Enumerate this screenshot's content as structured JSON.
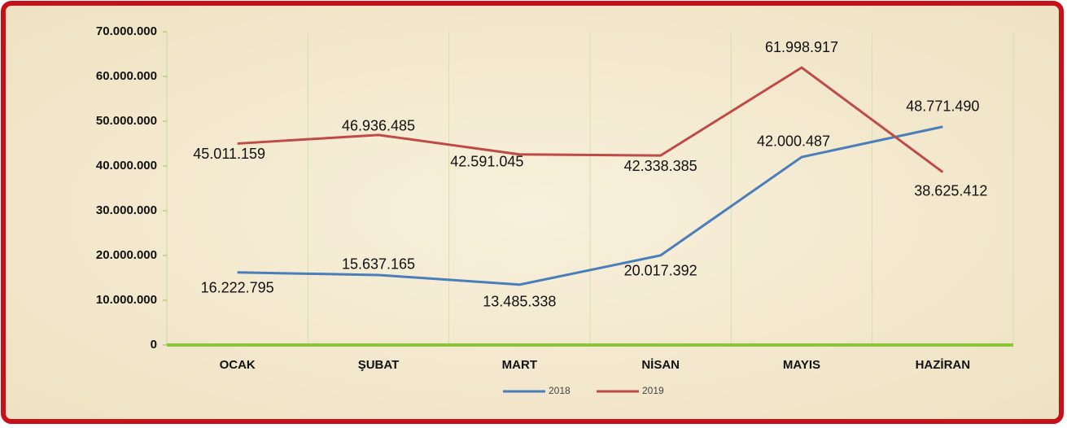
{
  "chart_data": {
    "type": "line",
    "categories": [
      "OCAK",
      "ŞUBAT",
      "MART",
      "NİSAN",
      "MAYIS",
      "HAZİRAN"
    ],
    "series": [
      {
        "name": "2018",
        "color": "#4a7ebb",
        "values": [
          16222795,
          15637165,
          13485338,
          20017392,
          42000487,
          48771490
        ],
        "value_labels": [
          "16.222.795",
          "15.637.165",
          "13.485.338",
          "20.017.392",
          "42.000.487",
          "48.771.490"
        ]
      },
      {
        "name": "2019",
        "color": "#be4b48",
        "values": [
          45011159,
          46936485,
          42591045,
          42338385,
          61998917,
          38625412
        ],
        "value_labels": [
          "45.011.159",
          "46.936.485",
          "42.591.045",
          "42.338.385",
          "61.998.917",
          "38.625.412"
        ]
      }
    ],
    "ylim": [
      0,
      70000000
    ],
    "yticks": [
      0,
      {
        "value": 10000000,
        "label": "10.000.000"
      },
      {
        "value": 20000000,
        "label": "20.000.000"
      },
      {
        "value": 30000000,
        "label": "30.000.000"
      },
      {
        "value": 40000000,
        "label": "40.000.000"
      },
      {
        "value": 50000000,
        "label": "50.000.000"
      },
      {
        "value": 60000000,
        "label": "60.000.000"
      },
      {
        "value": 70000000,
        "label": "70.000.000"
      }
    ],
    "legend": "bottom"
  }
}
